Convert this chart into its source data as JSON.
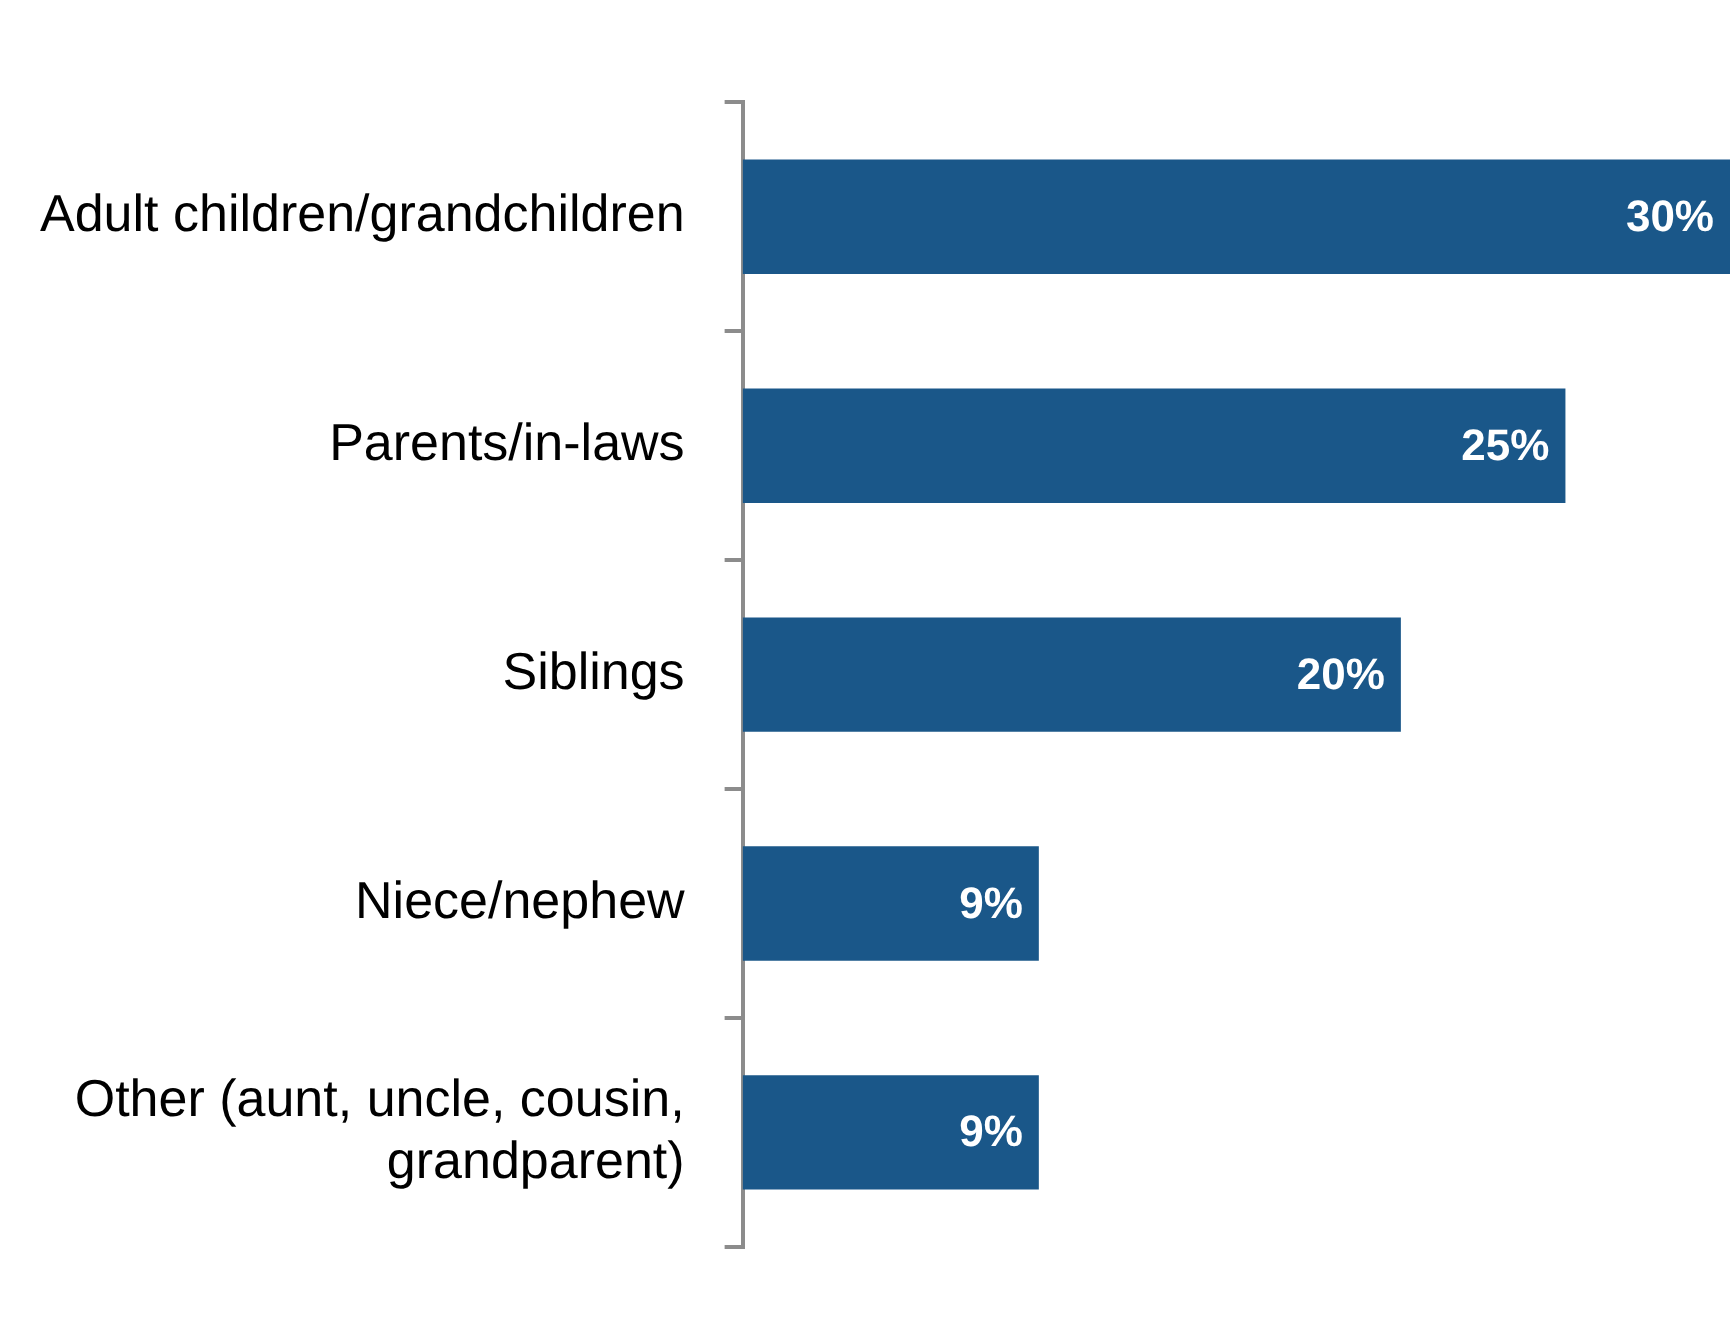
{
  "chart_data": {
    "type": "bar",
    "orientation": "horizontal",
    "categories": [
      "Adult children/grandchildren",
      "Parents/in-laws",
      "Siblings",
      "Niece/nephew",
      "Other (aunt, uncle, cousin, grandparent)"
    ],
    "values": [
      30,
      25,
      20,
      9,
      9
    ],
    "value_labels": [
      "30%",
      "25%",
      "20%",
      "9%",
      "9%"
    ],
    "color": "#1a5789",
    "legend": false,
    "grid": false
  }
}
